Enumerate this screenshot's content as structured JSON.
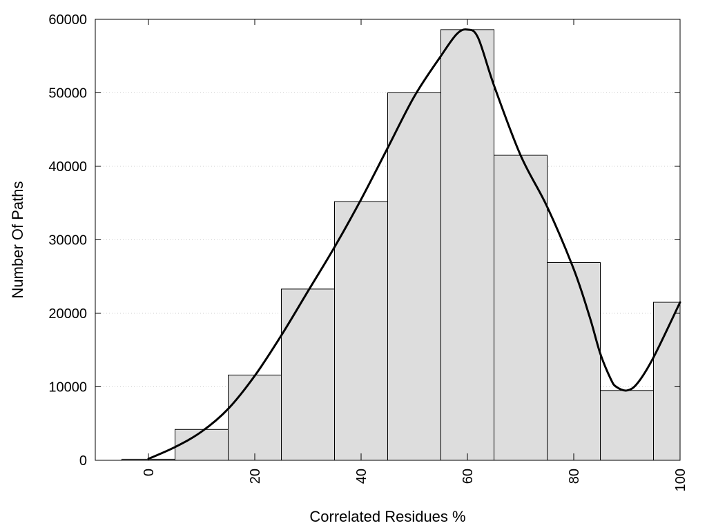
{
  "chart_data": {
    "type": "bar",
    "xlabel": "Correlated Residues %",
    "ylabel": "Number Of Paths",
    "xlim": [
      -10,
      100
    ],
    "ylim": [
      0,
      60000
    ],
    "xticks": [
      0,
      20,
      40,
      60,
      80,
      100
    ],
    "yticks": [
      0,
      10000,
      20000,
      30000,
      40000,
      50000,
      60000
    ],
    "grid": true,
    "legend": "none",
    "bar_color": "#dddddd",
    "bar_edge_color": "#000000",
    "bins": [
      {
        "start": -5,
        "end": 5,
        "value": 150
      },
      {
        "start": 5,
        "end": 15,
        "value": 4200
      },
      {
        "start": 15,
        "end": 25,
        "value": 11600
      },
      {
        "start": 25,
        "end": 35,
        "value": 23300
      },
      {
        "start": 35,
        "end": 45,
        "value": 35200
      },
      {
        "start": 45,
        "end": 55,
        "value": 50000
      },
      {
        "start": 55,
        "end": 65,
        "value": 58600
      },
      {
        "start": 65,
        "end": 75,
        "value": 41500
      },
      {
        "start": 75,
        "end": 85,
        "value": 26900
      },
      {
        "start": 85,
        "end": 95,
        "value": 9500
      },
      {
        "start": 95,
        "end": 100,
        "value": 21500
      }
    ],
    "curve": {
      "x": [
        0,
        5,
        10,
        15,
        20,
        25,
        30,
        35,
        40,
        45,
        50,
        55,
        58,
        60,
        62,
        65,
        70,
        75,
        80,
        83,
        85,
        87,
        88,
        90,
        92,
        95,
        100
      ],
      "y": [
        200,
        1800,
        3900,
        7000,
        11500,
        17000,
        23000,
        29000,
        35500,
        42500,
        49500,
        55000,
        58000,
        58600,
        57500,
        51000,
        41500,
        34500,
        26000,
        19500,
        14500,
        11000,
        10000,
        9500,
        10500,
        14000,
        21500
      ]
    }
  }
}
